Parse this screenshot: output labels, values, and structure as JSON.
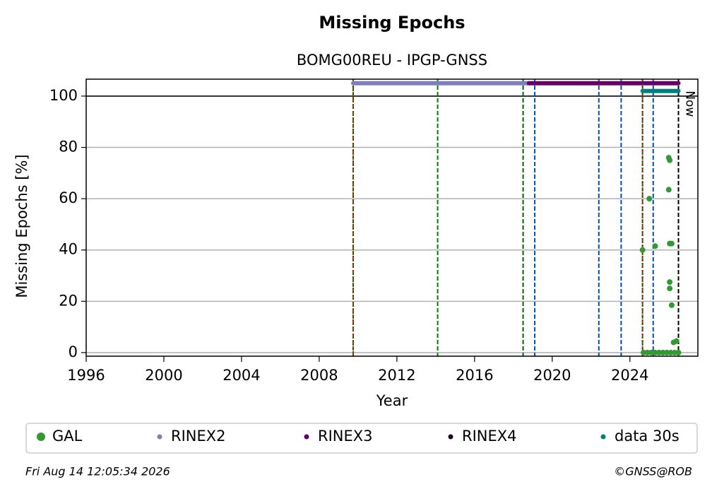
{
  "chart_data": {
    "type": "scatter",
    "title": "Missing Epochs",
    "subtitle": "BOMG00REU - IPGP-GNSS",
    "x_label": "Year",
    "y_label": "Missing Epochs [%]",
    "xlim": [
      1996,
      2027.5
    ],
    "ylim": [
      -1.4,
      106.6
    ],
    "xticks": [
      1996,
      2000,
      2004,
      2008,
      2012,
      2016,
      2020,
      2024
    ],
    "yticks": [
      0,
      20,
      40,
      60,
      80,
      100
    ],
    "grid": true,
    "hline": 100,
    "vlines": [
      {
        "x": 2009.75,
        "colors": [
          "#008000",
          "#cc0000"
        ]
      },
      {
        "x": 2014.1,
        "colors": [
          "#008000"
        ]
      },
      {
        "x": 2018.5,
        "colors": [
          "#006400"
        ]
      },
      {
        "x": 2019.1,
        "colors": [
          "#0050b0"
        ]
      },
      {
        "x": 2022.4,
        "colors": [
          "#0050b0"
        ]
      },
      {
        "x": 2023.55,
        "colors": [
          "#0050b0"
        ]
      },
      {
        "x": 2024.65,
        "colors": [
          "#008000",
          "#cc0000"
        ]
      },
      {
        "x": 2025.2,
        "colors": [
          "#0050b0"
        ]
      },
      {
        "x": 2026.5,
        "colors": [
          "#000000"
        ]
      }
    ],
    "annotations": [
      {
        "text": "Now",
        "x": 2026.5,
        "y": 97
      }
    ],
    "series": [
      {
        "name": "GAL",
        "color": "#339933",
        "mode": "markers",
        "x": [
          2024.65,
          2025.0,
          2025.3,
          2026.0,
          2026.05,
          2026.0,
          2026.05,
          2026.15,
          2026.05,
          2026.05,
          2026.15,
          2026.25,
          2026.4,
          2024.7,
          2024.9,
          2025.1,
          2025.3,
          2025.5,
          2025.7,
          2025.9,
          2026.1,
          2026.3,
          2026.5
        ],
        "values": [
          40,
          60,
          41.5,
          76,
          75,
          63.5,
          42.5,
          42.5,
          27.5,
          25,
          18.5,
          4,
          4.5,
          0,
          0,
          0,
          0,
          0,
          0,
          0,
          0,
          0,
          0
        ]
      },
      {
        "name": "RINEX2",
        "color": "#7f7fbf",
        "mode": "line",
        "x": [
          2009.75,
          2018.8
        ],
        "values": [
          105,
          105
        ]
      },
      {
        "name": "RINEX3",
        "color": "#660066",
        "mode": "line",
        "x": [
          2018.8,
          2026.5
        ],
        "values": [
          105,
          105
        ]
      },
      {
        "name": "RINEX4",
        "color": "#1a001a",
        "mode": "line",
        "x": [],
        "values": []
      },
      {
        "name": "data 30s",
        "color": "#007f7f",
        "mode": "line",
        "x": [
          2024.65,
          2026.5
        ],
        "values": [
          102,
          102
        ]
      }
    ],
    "footer_left": "Fri Aug 14 12:05:34 2026",
    "footer_right": "©GNSS@ROB"
  }
}
